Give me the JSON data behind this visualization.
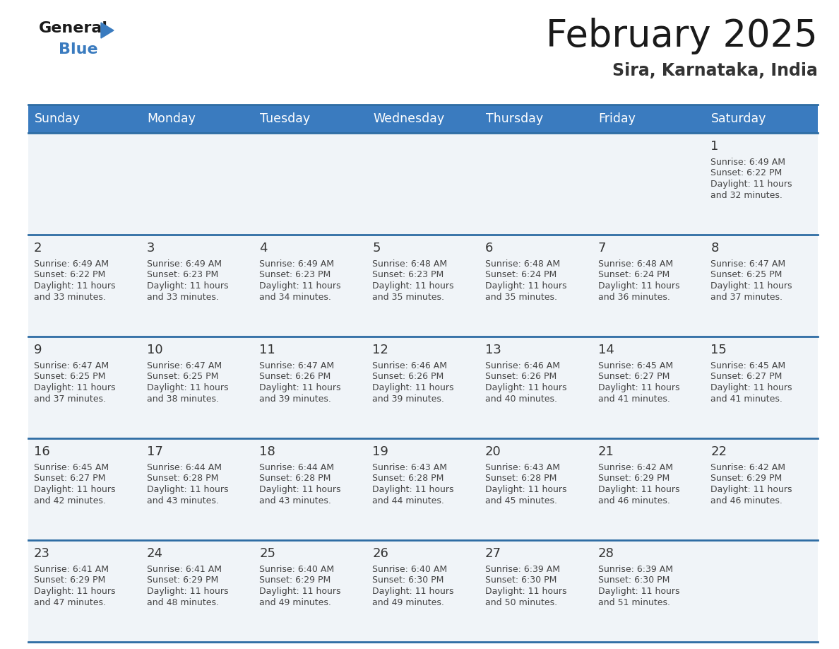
{
  "title": "February 2025",
  "subtitle": "Sira, Karnataka, India",
  "days_of_week": [
    "Sunday",
    "Monday",
    "Tuesday",
    "Wednesday",
    "Thursday",
    "Friday",
    "Saturday"
  ],
  "header_bg": "#3a7bbf",
  "header_text": "#ffffff",
  "cell_bg": "#f0f4f8",
  "cell_bg_white": "#ffffff",
  "divider_color": "#2e6da4",
  "text_color": "#444444",
  "day_num_color": "#333333",
  "title_color": "#1a1a1a",
  "subtitle_color": "#333333",
  "logo_black": "#1a1a1a",
  "logo_blue": "#3a7bbf",
  "calendar_data": [
    [
      null,
      null,
      null,
      null,
      null,
      null,
      {
        "day": 1,
        "sunrise": "6:49 AM",
        "sunset": "6:22 PM",
        "daylight": "11 hours",
        "daylight2": "and 32 minutes."
      }
    ],
    [
      {
        "day": 2,
        "sunrise": "6:49 AM",
        "sunset": "6:22 PM",
        "daylight": "11 hours",
        "daylight2": "and 33 minutes."
      },
      {
        "day": 3,
        "sunrise": "6:49 AM",
        "sunset": "6:23 PM",
        "daylight": "11 hours",
        "daylight2": "and 33 minutes."
      },
      {
        "day": 4,
        "sunrise": "6:49 AM",
        "sunset": "6:23 PM",
        "daylight": "11 hours",
        "daylight2": "and 34 minutes."
      },
      {
        "day": 5,
        "sunrise": "6:48 AM",
        "sunset": "6:23 PM",
        "daylight": "11 hours",
        "daylight2": "and 35 minutes."
      },
      {
        "day": 6,
        "sunrise": "6:48 AM",
        "sunset": "6:24 PM",
        "daylight": "11 hours",
        "daylight2": "and 35 minutes."
      },
      {
        "day": 7,
        "sunrise": "6:48 AM",
        "sunset": "6:24 PM",
        "daylight": "11 hours",
        "daylight2": "and 36 minutes."
      },
      {
        "day": 8,
        "sunrise": "6:47 AM",
        "sunset": "6:25 PM",
        "daylight": "11 hours",
        "daylight2": "and 37 minutes."
      }
    ],
    [
      {
        "day": 9,
        "sunrise": "6:47 AM",
        "sunset": "6:25 PM",
        "daylight": "11 hours",
        "daylight2": "and 37 minutes."
      },
      {
        "day": 10,
        "sunrise": "6:47 AM",
        "sunset": "6:25 PM",
        "daylight": "11 hours",
        "daylight2": "and 38 minutes."
      },
      {
        "day": 11,
        "sunrise": "6:47 AM",
        "sunset": "6:26 PM",
        "daylight": "11 hours",
        "daylight2": "and 39 minutes."
      },
      {
        "day": 12,
        "sunrise": "6:46 AM",
        "sunset": "6:26 PM",
        "daylight": "11 hours",
        "daylight2": "and 39 minutes."
      },
      {
        "day": 13,
        "sunrise": "6:46 AM",
        "sunset": "6:26 PM",
        "daylight": "11 hours",
        "daylight2": "and 40 minutes."
      },
      {
        "day": 14,
        "sunrise": "6:45 AM",
        "sunset": "6:27 PM",
        "daylight": "11 hours",
        "daylight2": "and 41 minutes."
      },
      {
        "day": 15,
        "sunrise": "6:45 AM",
        "sunset": "6:27 PM",
        "daylight": "11 hours",
        "daylight2": "and 41 minutes."
      }
    ],
    [
      {
        "day": 16,
        "sunrise": "6:45 AM",
        "sunset": "6:27 PM",
        "daylight": "11 hours",
        "daylight2": "and 42 minutes."
      },
      {
        "day": 17,
        "sunrise": "6:44 AM",
        "sunset": "6:28 PM",
        "daylight": "11 hours",
        "daylight2": "and 43 minutes."
      },
      {
        "day": 18,
        "sunrise": "6:44 AM",
        "sunset": "6:28 PM",
        "daylight": "11 hours",
        "daylight2": "and 43 minutes."
      },
      {
        "day": 19,
        "sunrise": "6:43 AM",
        "sunset": "6:28 PM",
        "daylight": "11 hours",
        "daylight2": "and 44 minutes."
      },
      {
        "day": 20,
        "sunrise": "6:43 AM",
        "sunset": "6:28 PM",
        "daylight": "11 hours",
        "daylight2": "and 45 minutes."
      },
      {
        "day": 21,
        "sunrise": "6:42 AM",
        "sunset": "6:29 PM",
        "daylight": "11 hours",
        "daylight2": "and 46 minutes."
      },
      {
        "day": 22,
        "sunrise": "6:42 AM",
        "sunset": "6:29 PM",
        "daylight": "11 hours",
        "daylight2": "and 46 minutes."
      }
    ],
    [
      {
        "day": 23,
        "sunrise": "6:41 AM",
        "sunset": "6:29 PM",
        "daylight": "11 hours",
        "daylight2": "and 47 minutes."
      },
      {
        "day": 24,
        "sunrise": "6:41 AM",
        "sunset": "6:29 PM",
        "daylight": "11 hours",
        "daylight2": "and 48 minutes."
      },
      {
        "day": 25,
        "sunrise": "6:40 AM",
        "sunset": "6:29 PM",
        "daylight": "11 hours",
        "daylight2": "and 49 minutes."
      },
      {
        "day": 26,
        "sunrise": "6:40 AM",
        "sunset": "6:30 PM",
        "daylight": "11 hours",
        "daylight2": "and 49 minutes."
      },
      {
        "day": 27,
        "sunrise": "6:39 AM",
        "sunset": "6:30 PM",
        "daylight": "11 hours",
        "daylight2": "and 50 minutes."
      },
      {
        "day": 28,
        "sunrise": "6:39 AM",
        "sunset": "6:30 PM",
        "daylight": "11 hours",
        "daylight2": "and 51 minutes."
      },
      null
    ]
  ]
}
